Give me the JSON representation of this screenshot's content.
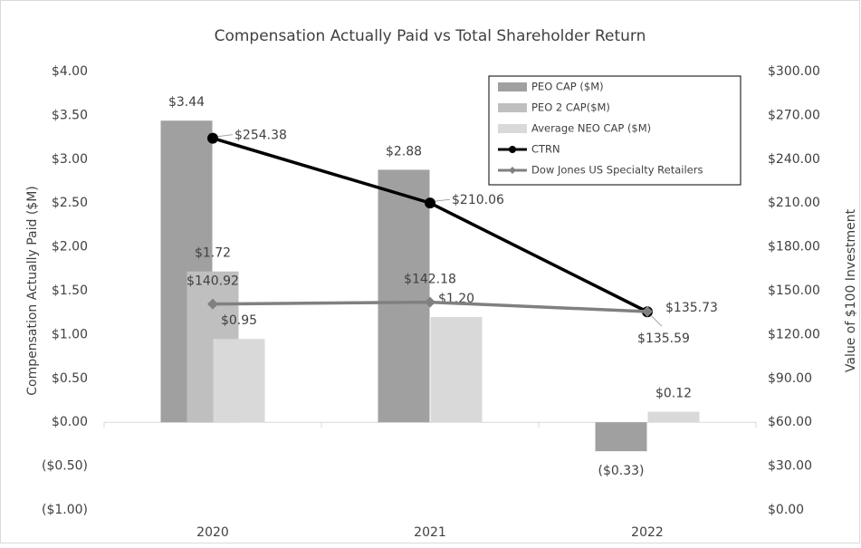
{
  "chart_data": {
    "type": "bar",
    "title": "Compensation Actually Paid vs Total Shareholder Return",
    "y_label": "Compensation Actually Paid ($M)",
    "y2_label": "Value of $100 Investment",
    "categories": [
      "2020",
      "2021",
      "2022"
    ],
    "series": [
      {
        "name": "PEO CAP ($M)",
        "type": "bar",
        "color": "#a0a0a0",
        "values": [
          3.44,
          2.88,
          -0.33
        ],
        "value_labels": [
          "$3.44",
          "$2.88",
          "($0.33)"
        ]
      },
      {
        "name": "PEO 2 CAP($M)",
        "type": "bar",
        "color": "#bfbfbf",
        "values": [
          1.72,
          null,
          null
        ],
        "value_labels": [
          "$1.72",
          null,
          null
        ]
      },
      {
        "name": "Average NEO CAP ($M)",
        "type": "bar",
        "color": "#d9d9d9",
        "values": [
          0.95,
          1.2,
          0.12
        ],
        "value_labels": [
          "$0.95",
          "$1.20",
          "$0.12"
        ]
      },
      {
        "name": "CTRN",
        "type": "line",
        "axis": "y2",
        "marker": "circle",
        "color": "#000000",
        "values": [
          254.38,
          210.06,
          135.59
        ],
        "value_labels": [
          "$254.38",
          "$210.06",
          "$135.59"
        ]
      },
      {
        "name": "Dow Jones US Specialty Retailers",
        "type": "line",
        "axis": "y2",
        "marker": "diamond",
        "color": "#808080",
        "values": [
          140.92,
          142.18,
          135.73
        ],
        "value_labels": [
          "$140.92",
          "$142.18",
          "$135.73"
        ]
      }
    ],
    "ylim": [
      -1,
      4
    ],
    "yticks": [
      {
        "value": -1,
        "label": "($1.00)"
      },
      {
        "value": -0.5,
        "label": "($0.50)"
      },
      {
        "value": 0,
        "label": "$0.00"
      },
      {
        "value": 0.5,
        "label": "$0.50"
      },
      {
        "value": 1,
        "label": "$1.00"
      },
      {
        "value": 1.5,
        "label": "$1.50"
      },
      {
        "value": 2,
        "label": "$2.00"
      },
      {
        "value": 2.5,
        "label": "$2.50"
      },
      {
        "value": 3,
        "label": "$3.00"
      },
      {
        "value": 3.5,
        "label": "$3.50"
      },
      {
        "value": 4,
        "label": "$4.00"
      }
    ],
    "y2lim": [
      0,
      300
    ],
    "y2ticks": [
      {
        "value": 0,
        "label": "$0.00"
      },
      {
        "value": 30,
        "label": "$30.00"
      },
      {
        "value": 60,
        "label": "$60.00"
      },
      {
        "value": 90,
        "label": "$90.00"
      },
      {
        "value": 120,
        "label": "$120.00"
      },
      {
        "value": 150,
        "label": "$150.00"
      },
      {
        "value": 180,
        "label": "$180.00"
      },
      {
        "value": 210,
        "label": "$210.00"
      },
      {
        "value": 240,
        "label": "$240.00"
      },
      {
        "value": 270,
        "label": "$270.00"
      },
      {
        "value": 300,
        "label": "$300.00"
      }
    ],
    "grid": false,
    "legend": "top-right"
  }
}
